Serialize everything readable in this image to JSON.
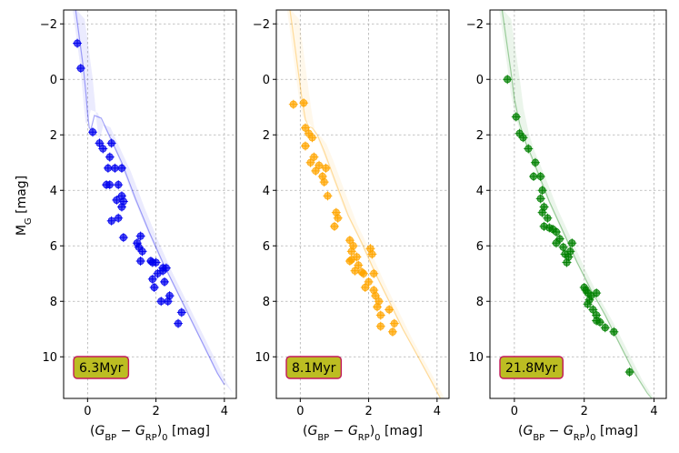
{
  "chart_data": [
    {
      "type": "scatter",
      "age_label": "6.3Myr",
      "color": "#0000ee",
      "xlabel": "(G_BP − G_RP)_0   [mag]",
      "ylabel": "M_G   [mag]",
      "xlim": [
        -0.7,
        4.35
      ],
      "ylim": [
        11.5,
        -2.5
      ],
      "xticks": [
        0,
        2,
        4
      ],
      "yticks": [
        -2,
        0,
        2,
        4,
        6,
        8,
        10
      ],
      "isochrone": [
        [
          -0.35,
          -2.5
        ],
        [
          -0.25,
          -1.6
        ],
        [
          -0.12,
          -0.4
        ],
        [
          -0.05,
          0.5
        ],
        [
          0.0,
          1.2
        ],
        [
          0.05,
          1.75
        ],
        [
          0.1,
          1.8
        ],
        [
          0.2,
          1.3
        ],
        [
          0.4,
          1.4
        ],
        [
          0.7,
          2.2
        ],
        [
          1.0,
          3.0
        ],
        [
          1.4,
          4.3
        ],
        [
          1.8,
          5.5
        ],
        [
          2.2,
          6.6
        ],
        [
          2.6,
          7.6
        ],
        [
          3.0,
          8.6
        ],
        [
          3.4,
          9.6
        ],
        [
          3.8,
          10.6
        ],
        [
          4.0,
          11.0
        ]
      ],
      "points": [
        [
          -0.3,
          -1.3
        ],
        [
          -0.2,
          -0.4
        ],
        [
          0.15,
          1.9
        ],
        [
          0.35,
          2.3
        ],
        [
          0.45,
          2.5
        ],
        [
          0.7,
          2.3
        ],
        [
          0.65,
          2.8
        ],
        [
          0.6,
          3.2
        ],
        [
          0.55,
          3.8
        ],
        [
          0.65,
          3.8
        ],
        [
          0.8,
          3.2
        ],
        [
          1.0,
          3.2
        ],
        [
          0.9,
          3.8
        ],
        [
          1.0,
          4.2
        ],
        [
          0.85,
          4.35
        ],
        [
          1.0,
          4.6
        ],
        [
          1.05,
          4.4
        ],
        [
          0.9,
          5.0
        ],
        [
          0.7,
          5.1
        ],
        [
          1.05,
          5.7
        ],
        [
          1.45,
          5.9
        ],
        [
          1.55,
          5.65
        ],
        [
          1.5,
          6.05
        ],
        [
          1.6,
          6.2
        ],
        [
          1.55,
          6.55
        ],
        [
          1.85,
          6.55
        ],
        [
          1.9,
          6.6
        ],
        [
          2.0,
          6.6
        ],
        [
          2.05,
          7.0
        ],
        [
          2.2,
          6.8
        ],
        [
          2.2,
          6.9
        ],
        [
          2.25,
          7.3
        ],
        [
          2.3,
          6.8
        ],
        [
          1.9,
          7.2
        ],
        [
          1.95,
          7.5
        ],
        [
          2.4,
          7.8
        ],
        [
          2.35,
          8.0
        ],
        [
          2.15,
          8.0
        ],
        [
          2.75,
          8.4
        ],
        [
          2.65,
          8.8
        ]
      ]
    },
    {
      "type": "scatter",
      "age_label": "8.1Myr",
      "color": "#ffa500",
      "xlabel": "(G_BP − G_RP)_0   [mag]",
      "ylabel": "",
      "xlim": [
        -0.7,
        4.35
      ],
      "ylim": [
        11.5,
        -2.5
      ],
      "xticks": [
        0,
        2,
        4
      ],
      "yticks": [
        -2,
        0,
        2,
        4,
        6,
        8,
        10
      ],
      "isochrone": [
        [
          -0.3,
          -2.5
        ],
        [
          -0.2,
          -1.6
        ],
        [
          -0.05,
          -0.2
        ],
        [
          0.05,
          0.7
        ],
        [
          0.15,
          1.45
        ],
        [
          0.25,
          1.7
        ],
        [
          0.35,
          1.75
        ],
        [
          0.5,
          2.0
        ],
        [
          0.7,
          2.6
        ],
        [
          1.0,
          3.6
        ],
        [
          1.4,
          4.9
        ],
        [
          1.8,
          5.9
        ],
        [
          2.2,
          7.0
        ],
        [
          2.6,
          8.0
        ],
        [
          3.0,
          9.0
        ],
        [
          3.4,
          9.9
        ],
        [
          3.8,
          10.8
        ],
        [
          4.1,
          11.5
        ]
      ],
      "points": [
        [
          -0.2,
          0.9
        ],
        [
          0.1,
          0.85
        ],
        [
          0.15,
          1.75
        ],
        [
          0.25,
          1.95
        ],
        [
          0.35,
          2.1
        ],
        [
          0.15,
          2.4
        ],
        [
          0.4,
          2.8
        ],
        [
          0.3,
          3.0
        ],
        [
          0.55,
          3.1
        ],
        [
          0.45,
          3.3
        ],
        [
          0.75,
          3.2
        ],
        [
          0.65,
          3.5
        ],
        [
          0.7,
          3.7
        ],
        [
          0.8,
          4.2
        ],
        [
          1.05,
          4.8
        ],
        [
          1.1,
          5.0
        ],
        [
          1.0,
          5.3
        ],
        [
          1.45,
          5.8
        ],
        [
          1.55,
          6.0
        ],
        [
          1.5,
          6.2
        ],
        [
          1.65,
          6.4
        ],
        [
          1.5,
          6.5
        ],
        [
          1.45,
          6.55
        ],
        [
          1.7,
          6.7
        ],
        [
          1.6,
          6.9
        ],
        [
          1.8,
          6.95
        ],
        [
          1.85,
          7.0
        ],
        [
          2.05,
          6.1
        ],
        [
          2.1,
          6.3
        ],
        [
          2.15,
          7.0
        ],
        [
          2.0,
          7.3
        ],
        [
          1.9,
          7.5
        ],
        [
          2.15,
          7.6
        ],
        [
          2.2,
          7.8
        ],
        [
          2.3,
          8.0
        ],
        [
          2.25,
          8.2
        ],
        [
          2.35,
          8.5
        ],
        [
          2.6,
          8.3
        ],
        [
          2.75,
          8.8
        ],
        [
          2.7,
          9.1
        ],
        [
          2.35,
          8.9
        ]
      ]
    },
    {
      "type": "scatter",
      "age_label": "21.8Myr",
      "color": "#008000",
      "xlabel": "(G_BP − G_RP)_0   [mag]",
      "ylabel": "",
      "xlim": [
        -0.7,
        4.35
      ],
      "ylim": [
        11.5,
        -2.5
      ],
      "xticks": [
        0,
        2,
        4
      ],
      "yticks": [
        -2,
        0,
        2,
        4,
        6,
        8,
        10
      ],
      "isochrone": [
        [
          -0.35,
          -2.5
        ],
        [
          -0.25,
          -1.6
        ],
        [
          -0.1,
          -0.3
        ],
        [
          0.0,
          0.7
        ],
        [
          0.15,
          1.6
        ],
        [
          0.3,
          2.2
        ],
        [
          0.5,
          2.8
        ],
        [
          0.75,
          3.6
        ],
        [
          1.0,
          4.4
        ],
        [
          1.4,
          5.5
        ],
        [
          1.8,
          6.6
        ],
        [
          2.2,
          7.6
        ],
        [
          2.6,
          8.5
        ],
        [
          3.0,
          9.5
        ],
        [
          3.4,
          10.5
        ],
        [
          3.8,
          11.3
        ],
        [
          4.0,
          11.6
        ]
      ],
      "points": [
        [
          -0.2,
          0.0
        ],
        [
          0.05,
          1.35
        ],
        [
          0.15,
          1.95
        ],
        [
          0.25,
          2.1
        ],
        [
          0.4,
          2.5
        ],
        [
          0.6,
          3.0
        ],
        [
          0.55,
          3.5
        ],
        [
          0.75,
          3.5
        ],
        [
          0.8,
          4.0
        ],
        [
          0.75,
          4.3
        ],
        [
          0.85,
          4.6
        ],
        [
          0.8,
          4.8
        ],
        [
          0.95,
          5.0
        ],
        [
          0.85,
          5.3
        ],
        [
          1.0,
          5.35
        ],
        [
          1.1,
          5.4
        ],
        [
          1.2,
          5.5
        ],
        [
          1.3,
          5.75
        ],
        [
          1.2,
          5.9
        ],
        [
          1.4,
          6.05
        ],
        [
          1.45,
          6.3
        ],
        [
          1.55,
          6.4
        ],
        [
          1.6,
          6.2
        ],
        [
          1.65,
          5.9
        ],
        [
          1.5,
          6.6
        ],
        [
          2.0,
          7.5
        ],
        [
          2.05,
          7.6
        ],
        [
          2.1,
          7.7
        ],
        [
          2.2,
          7.8
        ],
        [
          2.15,
          7.95
        ],
        [
          2.1,
          8.1
        ],
        [
          2.35,
          7.7
        ],
        [
          2.25,
          8.3
        ],
        [
          2.35,
          8.5
        ],
        [
          2.35,
          8.7
        ],
        [
          2.45,
          8.75
        ],
        [
          2.6,
          8.95
        ],
        [
          2.85,
          9.1
        ],
        [
          3.3,
          10.55
        ]
      ]
    }
  ]
}
